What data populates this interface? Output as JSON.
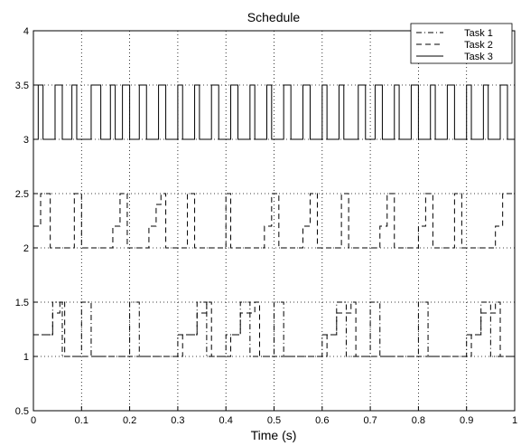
{
  "chart_data": {
    "type": "line",
    "title": "Schedule",
    "xlabel": "Time (s)",
    "ylabel": "",
    "xlim": [
      0,
      1
    ],
    "ylim": [
      0.5,
      4
    ],
    "xticks": [
      "0",
      "0.1",
      "0.2",
      "0.3",
      "0.4",
      "0.5",
      "0.6",
      "0.7",
      "0.8",
      "0.9",
      "1"
    ],
    "yticks": [
      "0.5",
      "1",
      "1.5",
      "2",
      "2.5",
      "3",
      "3.5",
      "4"
    ],
    "grid": true,
    "legend_position": "top-right",
    "series": [
      {
        "name": "Task 1",
        "style": "dash-dot",
        "points": [
          [
            0.0,
            1.2
          ],
          [
            0.04,
            1.2
          ],
          [
            0.04,
            1.5
          ],
          [
            0.06,
            1.5
          ],
          [
            0.06,
            1.0
          ],
          [
            0.1,
            1.0
          ],
          [
            0.1,
            1.5
          ],
          [
            0.12,
            1.5
          ],
          [
            0.12,
            1.0
          ],
          [
            0.2,
            1.0
          ],
          [
            0.2,
            1.5
          ],
          [
            0.22,
            1.5
          ],
          [
            0.22,
            1.0
          ],
          [
            0.3,
            1.0
          ],
          [
            0.3,
            1.2
          ],
          [
            0.34,
            1.2
          ],
          [
            0.34,
            1.5
          ],
          [
            0.36,
            1.5
          ],
          [
            0.36,
            1.0
          ],
          [
            0.4,
            1.0
          ],
          [
            0.4,
            1.2
          ],
          [
            0.43,
            1.2
          ],
          [
            0.43,
            1.5
          ],
          [
            0.45,
            1.5
          ],
          [
            0.45,
            1.0
          ],
          [
            0.5,
            1.0
          ],
          [
            0.5,
            1.5
          ],
          [
            0.52,
            1.5
          ],
          [
            0.52,
            1.0
          ],
          [
            0.6,
            1.0
          ],
          [
            0.6,
            1.2
          ],
          [
            0.63,
            1.2
          ],
          [
            0.63,
            1.5
          ],
          [
            0.65,
            1.5
          ],
          [
            0.65,
            1.0
          ],
          [
            0.7,
            1.0
          ],
          [
            0.7,
            1.5
          ],
          [
            0.72,
            1.5
          ],
          [
            0.72,
            1.0
          ],
          [
            0.8,
            1.0
          ],
          [
            0.8,
            1.5
          ],
          [
            0.82,
            1.5
          ],
          [
            0.82,
            1.0
          ],
          [
            0.9,
            1.0
          ],
          [
            0.9,
            1.2
          ],
          [
            0.93,
            1.2
          ],
          [
            0.93,
            1.5
          ],
          [
            0.95,
            1.5
          ],
          [
            0.95,
            1.0
          ],
          [
            1.0,
            1.0
          ]
        ]
      },
      {
        "name": "Task 2",
        "style": "dashed",
        "points": [
          [
            0.0,
            1.2
          ],
          [
            0.04,
            1.2
          ],
          [
            0.04,
            1.4
          ],
          [
            0.055,
            1.4
          ],
          [
            0.055,
            1.5
          ],
          [
            0.065,
            1.5
          ],
          [
            0.065,
            1.0
          ],
          [
            0.1,
            1.0
          ],
          [
            0.1,
            1.0
          ],
          [
            0.31,
            1.0
          ],
          [
            0.31,
            1.2
          ],
          [
            0.34,
            1.2
          ],
          [
            0.34,
            1.4
          ],
          [
            0.36,
            1.4
          ],
          [
            0.36,
            1.5
          ],
          [
            0.37,
            1.5
          ],
          [
            0.37,
            1.0
          ],
          [
            0.41,
            1.0
          ],
          [
            0.41,
            1.2
          ],
          [
            0.43,
            1.2
          ],
          [
            0.43,
            1.4
          ],
          [
            0.46,
            1.4
          ],
          [
            0.46,
            1.5
          ],
          [
            0.47,
            1.5
          ],
          [
            0.47,
            1.0
          ],
          [
            0.61,
            1.0
          ],
          [
            0.61,
            1.2
          ],
          [
            0.63,
            1.2
          ],
          [
            0.63,
            1.4
          ],
          [
            0.66,
            1.4
          ],
          [
            0.66,
            1.5
          ],
          [
            0.67,
            1.5
          ],
          [
            0.67,
            1.0
          ],
          [
            0.91,
            1.0
          ],
          [
            0.91,
            1.2
          ],
          [
            0.93,
            1.2
          ],
          [
            0.93,
            1.4
          ],
          [
            0.96,
            1.4
          ],
          [
            0.96,
            1.5
          ],
          [
            0.97,
            1.5
          ],
          [
            0.97,
            1.0
          ],
          [
            1.0,
            1.0
          ],
          [
            null,
            null
          ],
          [
            0.0,
            2.2
          ],
          [
            0.015,
            2.2
          ],
          [
            0.015,
            2.5
          ],
          [
            0.035,
            2.5
          ],
          [
            0.035,
            2.0
          ],
          [
            0.085,
            2.0
          ],
          [
            0.085,
            2.5
          ],
          [
            0.1,
            2.5
          ],
          [
            0.1,
            2.0
          ],
          [
            0.165,
            2.0
          ],
          [
            0.165,
            2.2
          ],
          [
            0.18,
            2.2
          ],
          [
            0.18,
            2.5
          ],
          [
            0.195,
            2.5
          ],
          [
            0.195,
            2.0
          ],
          [
            0.24,
            2.0
          ],
          [
            0.24,
            2.2
          ],
          [
            0.255,
            2.2
          ],
          [
            0.255,
            2.4
          ],
          [
            0.265,
            2.4
          ],
          [
            0.265,
            2.5
          ],
          [
            0.275,
            2.5
          ],
          [
            0.275,
            2.0
          ],
          [
            0.32,
            2.0
          ],
          [
            0.32,
            2.5
          ],
          [
            0.335,
            2.5
          ],
          [
            0.335,
            2.0
          ],
          [
            0.4,
            2.0
          ],
          [
            0.4,
            2.5
          ],
          [
            0.41,
            2.5
          ],
          [
            0.41,
            2.0
          ],
          [
            0.48,
            2.0
          ],
          [
            0.48,
            2.2
          ],
          [
            0.495,
            2.2
          ],
          [
            0.495,
            2.5
          ],
          [
            0.51,
            2.5
          ],
          [
            0.51,
            2.0
          ],
          [
            0.56,
            2.0
          ],
          [
            0.56,
            2.2
          ],
          [
            0.575,
            2.2
          ],
          [
            0.575,
            2.5
          ],
          [
            0.59,
            2.5
          ],
          [
            0.59,
            2.0
          ],
          [
            0.64,
            2.0
          ],
          [
            0.64,
            2.5
          ],
          [
            0.655,
            2.5
          ],
          [
            0.655,
            2.0
          ],
          [
            0.72,
            2.0
          ],
          [
            0.72,
            2.2
          ],
          [
            0.735,
            2.2
          ],
          [
            0.735,
            2.5
          ],
          [
            0.75,
            2.5
          ],
          [
            0.75,
            2.0
          ],
          [
            0.8,
            2.0
          ],
          [
            0.8,
            2.2
          ],
          [
            0.815,
            2.2
          ],
          [
            0.815,
            2.5
          ],
          [
            0.83,
            2.5
          ],
          [
            0.83,
            2.0
          ],
          [
            0.875,
            2.0
          ],
          [
            0.875,
            2.5
          ],
          [
            0.89,
            2.5
          ],
          [
            0.89,
            2.0
          ],
          [
            0.96,
            2.0
          ],
          [
            0.96,
            2.2
          ],
          [
            0.975,
            2.2
          ],
          [
            0.975,
            2.5
          ],
          [
            1.0,
            2.5
          ]
        ]
      },
      {
        "name": "Task 3",
        "style": "solid",
        "points": [
          [
            0.0,
            3.0
          ],
          [
            0.01,
            3.0
          ],
          [
            0.01,
            3.5
          ],
          [
            0.02,
            3.5
          ],
          [
            0.02,
            3.0
          ],
          [
            0.045,
            3.0
          ],
          [
            0.045,
            3.5
          ],
          [
            0.06,
            3.5
          ],
          [
            0.06,
            3.0
          ],
          [
            0.08,
            3.0
          ],
          [
            0.08,
            3.5
          ],
          [
            0.09,
            3.5
          ],
          [
            0.09,
            3.0
          ],
          [
            0.12,
            3.0
          ],
          [
            0.12,
            3.5
          ],
          [
            0.14,
            3.5
          ],
          [
            0.14,
            3.0
          ],
          [
            0.16,
            3.0
          ],
          [
            0.16,
            3.5
          ],
          [
            0.17,
            3.5
          ],
          [
            0.17,
            3.0
          ],
          [
            0.185,
            3.0
          ],
          [
            0.185,
            3.5
          ],
          [
            0.2,
            3.5
          ],
          [
            0.2,
            3.0
          ],
          [
            0.22,
            3.0
          ],
          [
            0.22,
            3.5
          ],
          [
            0.235,
            3.5
          ],
          [
            0.235,
            3.0
          ],
          [
            0.26,
            3.0
          ],
          [
            0.26,
            3.5
          ],
          [
            0.275,
            3.5
          ],
          [
            0.275,
            3.0
          ],
          [
            0.3,
            3.0
          ],
          [
            0.3,
            3.5
          ],
          [
            0.31,
            3.5
          ],
          [
            0.31,
            3.0
          ],
          [
            0.335,
            3.0
          ],
          [
            0.335,
            3.5
          ],
          [
            0.345,
            3.5
          ],
          [
            0.345,
            3.0
          ],
          [
            0.37,
            3.0
          ],
          [
            0.37,
            3.5
          ],
          [
            0.385,
            3.5
          ],
          [
            0.385,
            3.0
          ],
          [
            0.41,
            3.0
          ],
          [
            0.41,
            3.5
          ],
          [
            0.425,
            3.5
          ],
          [
            0.425,
            3.0
          ],
          [
            0.45,
            3.0
          ],
          [
            0.45,
            3.5
          ],
          [
            0.46,
            3.5
          ],
          [
            0.46,
            3.0
          ],
          [
            0.485,
            3.0
          ],
          [
            0.485,
            3.5
          ],
          [
            0.495,
            3.5
          ],
          [
            0.495,
            3.0
          ],
          [
            0.52,
            3.0
          ],
          [
            0.52,
            3.5
          ],
          [
            0.535,
            3.5
          ],
          [
            0.535,
            3.0
          ],
          [
            0.56,
            3.0
          ],
          [
            0.56,
            3.5
          ],
          [
            0.575,
            3.5
          ],
          [
            0.575,
            3.0
          ],
          [
            0.6,
            3.0
          ],
          [
            0.6,
            3.5
          ],
          [
            0.61,
            3.5
          ],
          [
            0.61,
            3.0
          ],
          [
            0.635,
            3.0
          ],
          [
            0.635,
            3.5
          ],
          [
            0.645,
            3.5
          ],
          [
            0.645,
            3.0
          ],
          [
            0.675,
            3.0
          ],
          [
            0.675,
            3.5
          ],
          [
            0.69,
            3.5
          ],
          [
            0.69,
            3.0
          ],
          [
            0.71,
            3.0
          ],
          [
            0.71,
            3.5
          ],
          [
            0.725,
            3.5
          ],
          [
            0.725,
            3.0
          ],
          [
            0.75,
            3.0
          ],
          [
            0.75,
            3.5
          ],
          [
            0.76,
            3.5
          ],
          [
            0.76,
            3.0
          ],
          [
            0.785,
            3.0
          ],
          [
            0.785,
            3.5
          ],
          [
            0.8,
            3.5
          ],
          [
            0.8,
            3.0
          ],
          [
            0.825,
            3.0
          ],
          [
            0.825,
            3.5
          ],
          [
            0.835,
            3.5
          ],
          [
            0.835,
            3.0
          ],
          [
            0.86,
            3.0
          ],
          [
            0.86,
            3.5
          ],
          [
            0.875,
            3.5
          ],
          [
            0.875,
            3.0
          ],
          [
            0.9,
            3.0
          ],
          [
            0.9,
            3.5
          ],
          [
            0.91,
            3.5
          ],
          [
            0.91,
            3.0
          ],
          [
            0.935,
            3.0
          ],
          [
            0.935,
            3.5
          ],
          [
            0.945,
            3.5
          ],
          [
            0.945,
            3.0
          ],
          [
            0.97,
            3.0
          ],
          [
            0.97,
            3.5
          ],
          [
            0.985,
            3.5
          ],
          [
            0.985,
            3.0
          ],
          [
            1.0,
            3.0
          ]
        ]
      }
    ]
  }
}
